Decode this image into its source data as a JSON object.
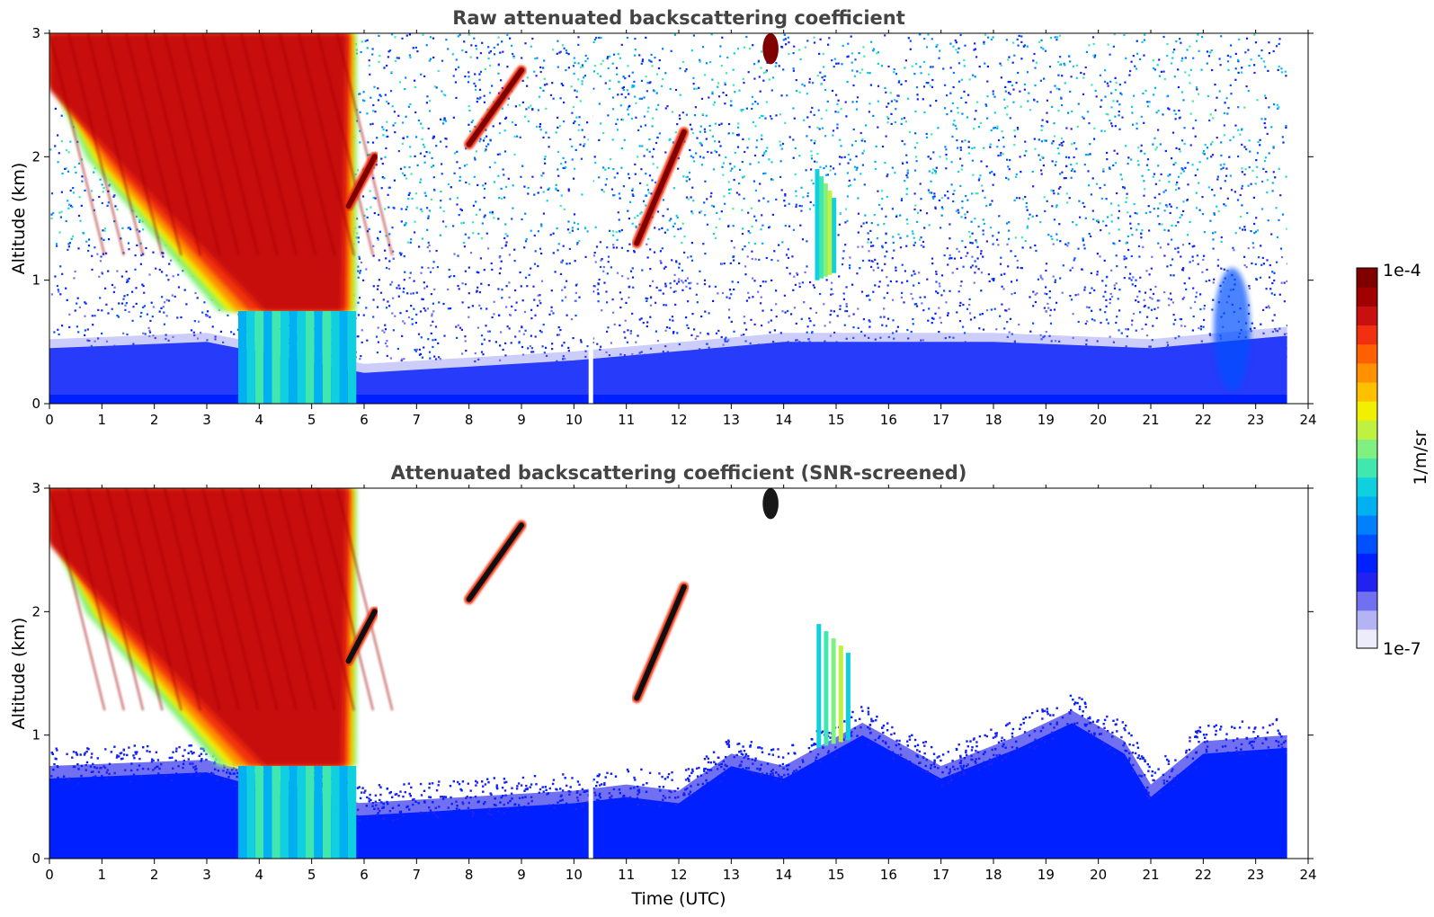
{
  "chart_data": [
    {
      "type": "heatmap",
      "title": "Raw attenuated backscattering coefficient",
      "xlabel": "",
      "ylabel": "Altitude (km)",
      "xlim": [
        0,
        24
      ],
      "ylim": [
        0,
        3
      ],
      "xticks": [
        0,
        1,
        2,
        3,
        4,
        5,
        6,
        7,
        8,
        9,
        10,
        11,
        12,
        13,
        14,
        15,
        16,
        17,
        18,
        19,
        20,
        21,
        22,
        23,
        24
      ],
      "yticks": [
        0,
        1,
        2,
        3
      ],
      "data_end_hour": 23.6,
      "noise_floor": "dense speckle from ~0.5 to 3 km across the full day",
      "boundary_layer_top_km": [
        {
          "x": 0,
          "y": 0.45
        },
        {
          "x": 3,
          "y": 0.5
        },
        {
          "x": 6,
          "y": 0.25
        },
        {
          "x": 10,
          "y": 0.35
        },
        {
          "x": 14,
          "y": 0.5
        },
        {
          "x": 18,
          "y": 0.5
        },
        {
          "x": 21,
          "y": 0.45
        },
        {
          "x": 23.6,
          "y": 0.55
        }
      ],
      "features": [
        {
          "name": "Descending cirrus / virga band",
          "hours": [
            0,
            5.85
          ],
          "altitude_km": [
            0.75,
            3.0
          ],
          "intensity": "high"
        },
        {
          "name": "Precipitation columns",
          "hours": [
            3.6,
            5.85
          ],
          "altitude_km": [
            0,
            0.75
          ],
          "intensity": "medium"
        },
        {
          "name": "Cloud streak",
          "hours": [
            5.7,
            6.2
          ],
          "altitude_km": [
            1.6,
            2.0
          ],
          "intensity": "very high"
        },
        {
          "name": "Cloud streak",
          "hours": [
            8.0,
            9.0
          ],
          "altitude_km": [
            2.1,
            2.7
          ],
          "intensity": "very high"
        },
        {
          "name": "Cloud streak",
          "hours": [
            11.2,
            12.1
          ],
          "altitude_km": [
            1.3,
            2.2
          ],
          "intensity": "very high"
        },
        {
          "name": "Cloud top",
          "hours": [
            13.6,
            13.9
          ],
          "altitude_km": [
            2.75,
            3.0
          ],
          "intensity": "very high"
        },
        {
          "name": "Thin cloud",
          "hours": [
            14.6,
            15.0
          ],
          "altitude_km": [
            1.0,
            1.9
          ],
          "intensity": "medium"
        },
        {
          "name": "Plume",
          "hours": [
            22.2,
            22.9
          ],
          "altitude_km": [
            0.1,
            1.1
          ],
          "intensity": "low"
        }
      ]
    },
    {
      "type": "heatmap",
      "title": "Attenuated backscattering coefficient (SNR-screened)",
      "xlabel": "Time (UTC)",
      "ylabel": "Altitude (km)",
      "xlim": [
        0,
        24
      ],
      "ylim": [
        0,
        3
      ],
      "xticks": [
        0,
        1,
        2,
        3,
        4,
        5,
        6,
        7,
        8,
        9,
        10,
        11,
        12,
        13,
        14,
        15,
        16,
        17,
        18,
        19,
        20,
        21,
        22,
        23,
        24
      ],
      "yticks": [
        0,
        1,
        2,
        3
      ],
      "data_end_hour": 23.6,
      "screened_mixed_layer_top_km": [
        {
          "x": 0,
          "y": 0.75
        },
        {
          "x": 3,
          "y": 0.8
        },
        {
          "x": 5.9,
          "y": 0.45
        },
        {
          "x": 8,
          "y": 0.5
        },
        {
          "x": 10,
          "y": 0.55
        },
        {
          "x": 11,
          "y": 0.6
        },
        {
          "x": 12,
          "y": 0.55
        },
        {
          "x": 13,
          "y": 0.85
        },
        {
          "x": 14,
          "y": 0.75
        },
        {
          "x": 15.5,
          "y": 1.1
        },
        {
          "x": 17,
          "y": 0.75
        },
        {
          "x": 18.5,
          "y": 1.0
        },
        {
          "x": 19.5,
          "y": 1.2
        },
        {
          "x": 20.5,
          "y": 0.95
        },
        {
          "x": 21,
          "y": 0.6
        },
        {
          "x": 22,
          "y": 0.95
        },
        {
          "x": 23.6,
          "y": 1.0
        }
      ],
      "features": [
        {
          "name": "Descending cirrus / virga band",
          "hours": [
            0,
            5.85
          ],
          "altitude_km": [
            0.75,
            3.0
          ],
          "intensity": "high"
        },
        {
          "name": "Precipitation columns",
          "hours": [
            3.6,
            5.85
          ],
          "altitude_km": [
            0,
            0.75
          ],
          "intensity": "medium"
        },
        {
          "name": "Cloud streak",
          "hours": [
            5.7,
            6.2
          ],
          "altitude_km": [
            1.6,
            2.0
          ],
          "intensity": "very high"
        },
        {
          "name": "Cloud streak",
          "hours": [
            8.0,
            9.0
          ],
          "altitude_km": [
            2.1,
            2.7
          ],
          "intensity": "very high"
        },
        {
          "name": "Cloud streak",
          "hours": [
            11.2,
            12.1
          ],
          "altitude_km": [
            1.3,
            2.2
          ],
          "intensity": "very high"
        },
        {
          "name": "Cloud top",
          "hours": [
            13.6,
            13.9
          ],
          "altitude_km": [
            2.75,
            3.0
          ],
          "intensity": "very high"
        },
        {
          "name": "Thin cloud",
          "hours": [
            14.6,
            15.3
          ],
          "altitude_km": [
            0.9,
            1.9
          ],
          "intensity": "medium"
        }
      ]
    }
  ],
  "colorbar": {
    "label": "1/m/sr",
    "max_label": "1e-4",
    "min_label": "1e-7",
    "colors": [
      "#ececfa",
      "#b4b4f4",
      "#7070f0",
      "#2222f0",
      "#0020ff",
      "#0050ff",
      "#0080ff",
      "#00b0f0",
      "#10d0e0",
      "#40e8b0",
      "#80f080",
      "#c0f040",
      "#f0f000",
      "#ffc000",
      "#ff9000",
      "#ff6000",
      "#f03010",
      "#c81010",
      "#a00000",
      "#800000"
    ]
  }
}
